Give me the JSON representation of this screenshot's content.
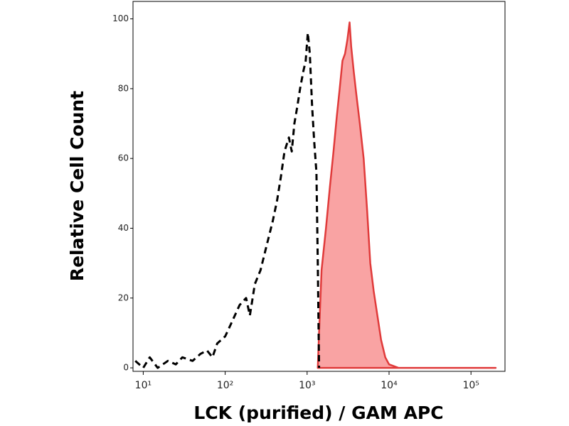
{
  "chart_data": {
    "type": "line",
    "x_label": "LCK (purified) / GAM APC",
    "y_label": "Relative Cell Count",
    "log_x": true,
    "xlim": [
      7.5,
      260000
    ],
    "ylim": [
      -1,
      105
    ],
    "xticks": [
      {
        "value": 10,
        "label": "10¹"
      },
      {
        "value": 100,
        "label": "10²"
      },
      {
        "value": 1000,
        "label": "10³"
      },
      {
        "value": 10000,
        "label": "10⁴"
      },
      {
        "value": 100000,
        "label": "10⁵"
      }
    ],
    "yticks": [
      0,
      20,
      40,
      60,
      80,
      100
    ],
    "series": [
      {
        "color": "#000000",
        "style": "dashed",
        "x": [
          8,
          10,
          12,
          15,
          20,
          25,
          30,
          40,
          50,
          60,
          70,
          80,
          100,
          120,
          150,
          180,
          200,
          230,
          270,
          320,
          380,
          430,
          480,
          530,
          600,
          650,
          700,
          760,
          820,
          900,
          960,
          1020,
          1080,
          1150,
          1220,
          1300,
          1350,
          1400
        ],
        "values": [
          2,
          0,
          3,
          0,
          2,
          1,
          3,
          2,
          4,
          5,
          3,
          7,
          9,
          13,
          18,
          20,
          15,
          24,
          28,
          35,
          42,
          48,
          55,
          62,
          66,
          62,
          70,
          75,
          80,
          85,
          88,
          96,
          90,
          75,
          65,
          56,
          30,
          0
        ]
      },
      {
        "color": "#e03a3a",
        "fill": "#f9a3a3",
        "style": "solid",
        "x": [
          1350,
          1400,
          1500,
          1700,
          1900,
          2100,
          2300,
          2500,
          2700,
          2900,
          3100,
          3300,
          3450,
          3700,
          4000,
          4400,
          4900,
          5400,
          5900,
          6500,
          7200,
          8000,
          9000,
          10000,
          13000,
          50000,
          200000
        ],
        "values": [
          0,
          10,
          28,
          40,
          52,
          62,
          72,
          80,
          88,
          90,
          94,
          99,
          92,
          85,
          78,
          70,
          60,
          45,
          30,
          22,
          15,
          8,
          3,
          1,
          0,
          0,
          0
        ]
      }
    ]
  }
}
